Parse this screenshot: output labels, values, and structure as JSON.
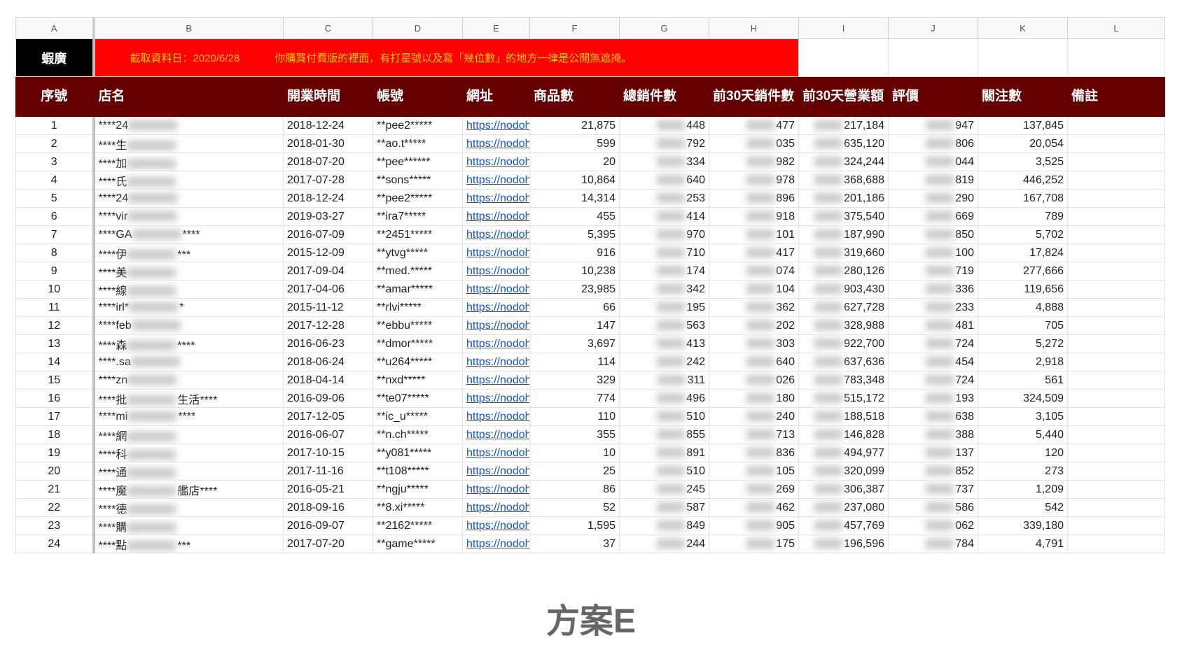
{
  "columns": [
    "A",
    "B",
    "C",
    "D",
    "E",
    "F",
    "G",
    "H",
    "I",
    "J",
    "K",
    "L"
  ],
  "banner": {
    "label": "蝦廣",
    "date": "截取資料日：2020/6/28",
    "note": "你購買付費版的裡面，有打星號以及寫「幾位數」的地方一律是公開無遮掩。"
  },
  "headers": [
    "序號",
    "店名",
    "開業時間",
    "帳號",
    "網址",
    "商品數",
    "總銷件數",
    "前30天銷件數",
    "前30天營業額",
    "評價",
    "關注數",
    "備註"
  ],
  "rows": [
    [
      "1",
      "****24",
      "2018-12-24",
      "**pee2*****",
      "https://nodoh",
      "21,875",
      "448",
      "477",
      "217,184",
      "947",
      "137,845"
    ],
    [
      "2",
      "****生",
      "2018-01-30",
      "**ao.t*****",
      "https://nodoh",
      "599",
      "792",
      "035",
      "635,120",
      "806",
      "20,054"
    ],
    [
      "3",
      "****加",
      "2018-07-20",
      "**pee******",
      "https://nodoh",
      "20",
      "334",
      "982",
      "324,244",
      "044",
      "3,525"
    ],
    [
      "4",
      "****氏",
      "2017-07-28",
      "**sons*****",
      "https://nodoh",
      "10,864",
      "640",
      "978",
      "368,688",
      "819",
      "446,252"
    ],
    [
      "5",
      "****24",
      "2018-12-24",
      "**pee2*****",
      "https://nodoh",
      "14,314",
      "253",
      "896",
      "201,186",
      "290",
      "167,708"
    ],
    [
      "6",
      "****vir",
      "2019-03-27",
      "**ira7*****",
      "https://nodoh",
      "455",
      "414",
      "918",
      "375,540",
      "669",
      "789"
    ],
    [
      "7",
      [
        "****GA",
        "****"
      ],
      "2016-07-09",
      "**2451*****",
      "https://nodoh",
      "5,395",
      "970",
      "101",
      "187,990",
      "850",
      "5,702"
    ],
    [
      "8",
      [
        "****伊",
        "***"
      ],
      "2015-12-09",
      "**ytvg*****",
      "https://nodoh",
      "916",
      "710",
      "417",
      "319,660",
      "100",
      "17,824"
    ],
    [
      "9",
      "****美",
      "2017-09-04",
      "**med.*****",
      "https://nodoh",
      "10,238",
      "174",
      "074",
      "280,126",
      "719",
      "277,666"
    ],
    [
      "10",
      "****線",
      "2017-04-06",
      "**amar*****",
      "https://nodoh",
      "23,985",
      "342",
      "104",
      "903,430",
      "336",
      "119,656"
    ],
    [
      "11",
      [
        "****irl*",
        "*"
      ],
      "2015-11-12",
      "**rlvi*****",
      "https://nodoh",
      "66",
      "195",
      "362",
      "627,728",
      "233",
      "4,888"
    ],
    [
      "12",
      "****feb",
      "2017-12-28",
      "**ebbu*****",
      "https://nodoh",
      "147",
      "563",
      "202",
      "328,988",
      "481",
      "705"
    ],
    [
      "13",
      [
        "****森",
        "****"
      ],
      "2016-06-23",
      "**dmor*****",
      "https://nodoh",
      "3,697",
      "413",
      "303",
      "922,700",
      "724",
      "5,272"
    ],
    [
      "14",
      "****.sa",
      "2018-06-24",
      "**u264*****",
      "https://nodoh",
      "114",
      "242",
      "640",
      "637,636",
      "454",
      "2,918"
    ],
    [
      "15",
      "****zn",
      "2018-04-14",
      "**nxd*****",
      "https://nodoh",
      "329",
      "311",
      "026",
      "783,348",
      "724",
      "561"
    ],
    [
      "16",
      [
        "****批",
        "生活****"
      ],
      "2016-09-06",
      "**te07*****",
      "https://nodoh",
      "774",
      "496",
      "180",
      "515,172",
      "193",
      "324,509"
    ],
    [
      "17",
      [
        "****mi",
        "****"
      ],
      "2017-12-05",
      "**ic_u*****",
      "https://nodoh",
      "110",
      "510",
      "240",
      "188,518",
      "638",
      "3,105"
    ],
    [
      "18",
      "****網",
      "2016-06-07",
      "**n.ch*****",
      "https://nodoh",
      "355",
      "855",
      "713",
      "146,828",
      "388",
      "5,440"
    ],
    [
      "19",
      "****科",
      "2017-10-15",
      "**y081*****",
      "https://nodoh",
      "10",
      "891",
      "836",
      "494,977",
      "137",
      "120"
    ],
    [
      "20",
      "****通",
      "2017-11-16",
      "**t108*****",
      "https://nodoh",
      "25",
      "510",
      "105",
      "320,099",
      "852",
      "273"
    ],
    [
      "21",
      [
        "****魔",
        "艦店****"
      ],
      "2016-05-21",
      "**ngju*****",
      "https://nodoh",
      "86",
      "245",
      "269",
      "306,387",
      "737",
      "1,209"
    ],
    [
      "22",
      "****德",
      "2018-09-16",
      "**8.xi*****",
      "https://nodoh",
      "52",
      "587",
      "462",
      "237,080",
      "586",
      "542"
    ],
    [
      "23",
      "****購",
      "2016-09-07",
      "**2162*****",
      "https://nodoh",
      "1,595",
      "849",
      "905",
      "457,769",
      "062",
      "339,180"
    ],
    [
      "24",
      [
        "****點",
        "***"
      ],
      "2017-07-20",
      "**game*****",
      "https://nodoh",
      "37",
      "244",
      "175",
      "196,596",
      "784",
      "4,791"
    ]
  ],
  "caption": "方案E"
}
